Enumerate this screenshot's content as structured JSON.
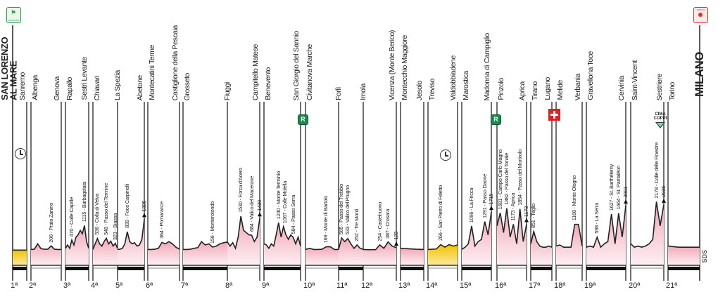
{
  "start": {
    "label": "SAN LORENZO AL MARE",
    "badge_text": "PARTENZA",
    "badge_color": "#2e9a4a"
  },
  "finish": {
    "label": "MILANO",
    "badge_text": "ARRIVO",
    "badge_color": "#e03030"
  },
  "places": [
    "Sanremo",
    "Albenga",
    "Genova",
    "Rapallo",
    "Sestri Levante",
    "Chiavari",
    "La Spezia",
    "Abetone",
    "Montecatini Terme",
    "Castiglione della Pescaia",
    "Grosseto",
    "Fiuggi",
    "Campitello Matese",
    "Benevento",
    "San Giorgio del Sannio",
    "Civitanova Marche",
    "Forlì",
    "Imola",
    "Vicenza (Monte Berico)",
    "Montecchio Maggiore",
    "Jesolo",
    "Treviso",
    "Valdobbiadene",
    "Marostica",
    "Madonna di Campiglio",
    "Pinzolo",
    "Aprica",
    "Tirano",
    "Lugano",
    "Melide",
    "Verbania",
    "Gravellona Toce",
    "Cervinia",
    "Saint-Vincent",
    "Sestriere",
    "Torino"
  ],
  "icons": {
    "stopwatch": "stopwatch-icon",
    "rest_day": "R",
    "swiss": "swiss-cross-icon",
    "cima_coppi": "CIMA COPPI",
    "watermark": "SDS"
  },
  "colors": {
    "profile": "#f3b5c3",
    "time_trial": "#f4c400",
    "rest": "#1a8a4a",
    "swiss": "#e02020"
  },
  "chart_data": {
    "type": "area",
    "stages": [
      {
        "label": "1ª",
        "type": "ttt",
        "profile": [
          20,
          20,
          22,
          20
        ],
        "climbs": [],
        "finish": null
      },
      {
        "label": "2ª",
        "type": "road",
        "profile": [
          50,
          60,
          300,
          80,
          60,
          60,
          206,
          60,
          50,
          50
        ],
        "climbs": [
          {
            "elev": 206,
            "name": "Prato Zanino"
          }
        ],
        "finish": null
      },
      {
        "label": "3ª",
        "type": "road",
        "profile": [
          100,
          250,
          100,
          470,
          250,
          600,
          700,
          900,
          750,
          1115,
          400,
          100
        ],
        "climbs": [
          {
            "elev": 470,
            "name": "Colle Caprile"
          },
          {
            "elev": 1115,
            "name": "Barbagelata"
          }
        ],
        "finish": null
      },
      {
        "label": "4ª",
        "type": "road",
        "profile": [
          50,
          300,
          536,
          300,
          200,
          400,
          548,
          300,
          420,
          200,
          323,
          100
        ],
        "climbs": [
          {
            "elev": 536,
            "name": "Colla di Velva"
          },
          {
            "elev": 548,
            "name": "Passo del Termine"
          },
          {
            "elev": 323,
            "name": "Biassa"
          }
        ],
        "finish": null
      },
      {
        "label": "5ª",
        "type": "road",
        "profile": [
          50,
          60,
          100,
          300,
          839,
          400,
          300,
          350,
          200,
          250,
          500,
          1395
        ],
        "climbs": [
          {
            "elev": 839,
            "name": "Foce Carpinelli"
          }
        ],
        "finish": "1395"
      },
      {
        "label": "6ª",
        "type": "road",
        "profile": [
          50,
          50,
          60,
          100,
          364,
          300,
          400,
          300,
          150,
          60
        ],
        "climbs": [
          {
            "elev": 364,
            "name": "Pomarance"
          }
        ],
        "finish": null
      },
      {
        "label": "7ª",
        "type": "road",
        "profile": [
          50,
          50,
          60,
          100,
          130,
          400,
          250,
          300,
          156,
          200,
          300,
          350,
          380
        ],
        "climbs": [
          {
            "elev": 156,
            "name": "Monterotondo"
          }
        ],
        "finish": null
      },
      {
        "label": "8ª",
        "type": "road",
        "profile": [
          380,
          200,
          350,
          100,
          600,
          1530,
          900,
          800,
          700,
          684,
          400,
          600,
          1430
        ],
        "climbs": [
          {
            "elev": 1530,
            "name": "Forca d'Acero"
          },
          {
            "elev": 684,
            "name": "Valico del Macerone"
          }
        ],
        "finish": "1430"
      },
      {
        "label": "9ª",
        "type": "road",
        "profile": [
          300,
          250,
          100,
          300,
          200,
          700,
          1240,
          600,
          1067,
          700,
          500,
          700,
          584,
          300,
          600,
          200
        ],
        "climbs": [
          {
            "elev": 1240,
            "name": "Monte Terminio"
          },
          {
            "elev": 1067,
            "name": "Colle Molella"
          },
          {
            "elev": 584,
            "name": "Passo Serra"
          }
        ],
        "finish": null
      },
      {
        "label": "10ª",
        "type": "road",
        "profile": [
          50,
          100,
          50,
          50,
          60,
          169,
          169,
          50,
          50
        ],
        "climbs": [
          {
            "elev": 169,
            "name": "Monte di Bartolo"
          }
        ],
        "finish": null
      },
      {
        "label": "11ª",
        "type": "road",
        "profile": [
          50,
          565,
          400,
          533,
          300,
          100,
          252,
          100,
          50
        ],
        "climbs": [
          {
            "elev": 565,
            "name": "Passo del Trebbio"
          },
          {
            "elev": 533,
            "name": "Valico del Prugno"
          },
          {
            "elev": 252,
            "name": "Tre Monti"
          }
        ],
        "finish": null
      },
      {
        "label": "12ª",
        "type": "road",
        "profile": [
          50,
          40,
          40,
          40,
          254,
          100,
          387,
          200,
          123
        ],
        "climbs": [
          {
            "elev": 254,
            "name": "Castelnuovo"
          },
          {
            "elev": 387,
            "name": "Crosara"
          }
        ],
        "finish": "123"
      },
      {
        "label": "13ª",
        "type": "road",
        "profile": [
          100,
          80,
          60,
          50
        ],
        "climbs": [],
        "finish": null
      },
      {
        "label": "14ª",
        "type": "itt",
        "profile": [
          50,
          60,
          70,
          266,
          150,
          266,
          200,
          250
        ],
        "climbs": [
          {
            "elev": 266,
            "name": "San Pietro di Feletto"
          }
        ],
        "finish": null
      },
      {
        "label": "15ª",
        "type": "road",
        "profile": [
          50,
          150,
          300,
          1096,
          200,
          400,
          500,
          1291,
          700,
          1715
        ],
        "climbs": [
          {
            "elev": 1096,
            "name": "La Fricca"
          },
          {
            "elev": 1291,
            "name": "Passo Daone"
          }
        ],
        "finish": "1715"
      },
      {
        "label": "16ª",
        "type": "road",
        "profile": [
          1100,
          1681,
          800,
          1882,
          600,
          1173,
          300,
          1854,
          400,
          1173
        ],
        "climbs": [
          {
            "elev": 1681,
            "name": "Campo Carlo Magno"
          },
          {
            "elev": 1882,
            "name": "Passo del Tonale"
          },
          {
            "elev": 1173,
            "name": "Aprica"
          },
          {
            "elev": 1854,
            "name": "Passo del Mortirolo"
          }
        ],
        "finish": "1173"
      },
      {
        "label": "17ª",
        "type": "road",
        "profile": [
          300,
          851,
          400,
          200,
          150,
          150,
          200,
          150
        ],
        "climbs": [
          {
            "elev": 851,
            "name": "Teglio"
          }
        ],
        "finish": null
      },
      {
        "label": "18ª",
        "type": "road",
        "profile": [
          200,
          250,
          150,
          150,
          150,
          1168,
          1168,
          200
        ],
        "climbs": [
          {
            "elev": 1168,
            "name": "Monte Ologno"
          }
        ],
        "finish": null
      },
      {
        "label": "19ª",
        "type": "road",
        "profile": [
          150,
          200,
          150,
          598,
          150,
          300,
          400,
          1627,
          300,
          1664,
          600,
          2001
        ],
        "climbs": [
          {
            "elev": 598,
            "name": "La Serra"
          },
          {
            "elev": 1627,
            "name": "St. Barthélemy"
          },
          {
            "elev": 1664,
            "name": "St. Pantaléon"
          }
        ],
        "finish": "2001"
      },
      {
        "label": "20ª",
        "type": "road",
        "profile": [
          300,
          150,
          200,
          150,
          200,
          300,
          500,
          2178,
          1100,
          2035
        ],
        "climbs": [
          {
            "elev": 2178,
            "name": "Colle delle Finestre"
          }
        ],
        "finish": "2035"
      },
      {
        "label": "21ª",
        "type": "road",
        "profile": [
          200,
          150,
          150,
          150
        ],
        "climbs": [],
        "finish": null
      }
    ]
  }
}
